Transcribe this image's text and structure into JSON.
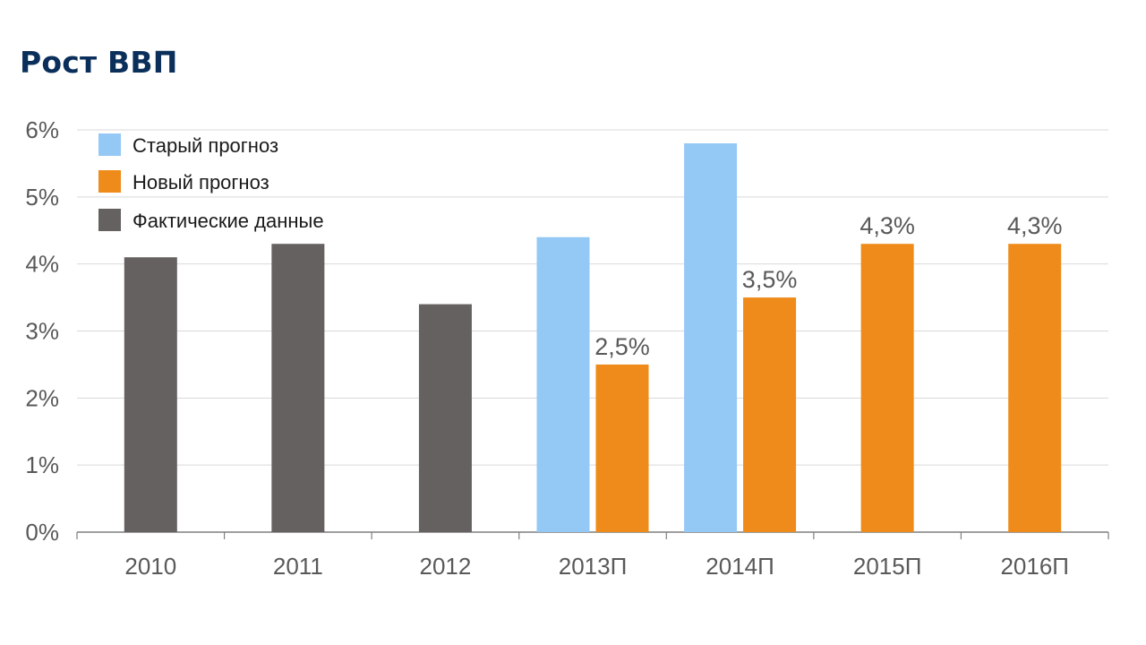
{
  "title": "Рост ВВП",
  "chart_data": {
    "type": "bar",
    "title": "Рост ВВП",
    "xlabel": "",
    "ylabel": "",
    "ylim": [
      0,
      6
    ],
    "yticks": [
      "0%",
      "1%",
      "2%",
      "3%",
      "4%",
      "5%",
      "6%"
    ],
    "grid": true,
    "legend_position": "top-left",
    "categories": [
      "2010",
      "2011",
      "2012",
      "2013П",
      "2014П",
      "2015П",
      "2016П"
    ],
    "series": [
      {
        "name": "Старый прогноз",
        "color": "#94c8f5",
        "values": [
          null,
          null,
          null,
          4.4,
          5.8,
          null,
          null
        ],
        "labels": [
          null,
          null,
          null,
          null,
          null,
          null,
          null
        ]
      },
      {
        "name": "Новый прогноз",
        "color": "#ee8b1a",
        "values": [
          null,
          null,
          null,
          2.5,
          3.5,
          4.3,
          4.3
        ],
        "labels": [
          null,
          null,
          null,
          "2,5%",
          "3,5%",
          "4,3%",
          "4,3%"
        ]
      },
      {
        "name": "Фактические данные",
        "color": "#656160",
        "values": [
          4.1,
          4.3,
          3.4,
          null,
          null,
          null,
          null
        ],
        "labels": [
          null,
          null,
          null,
          null,
          null,
          null,
          null
        ]
      }
    ]
  }
}
